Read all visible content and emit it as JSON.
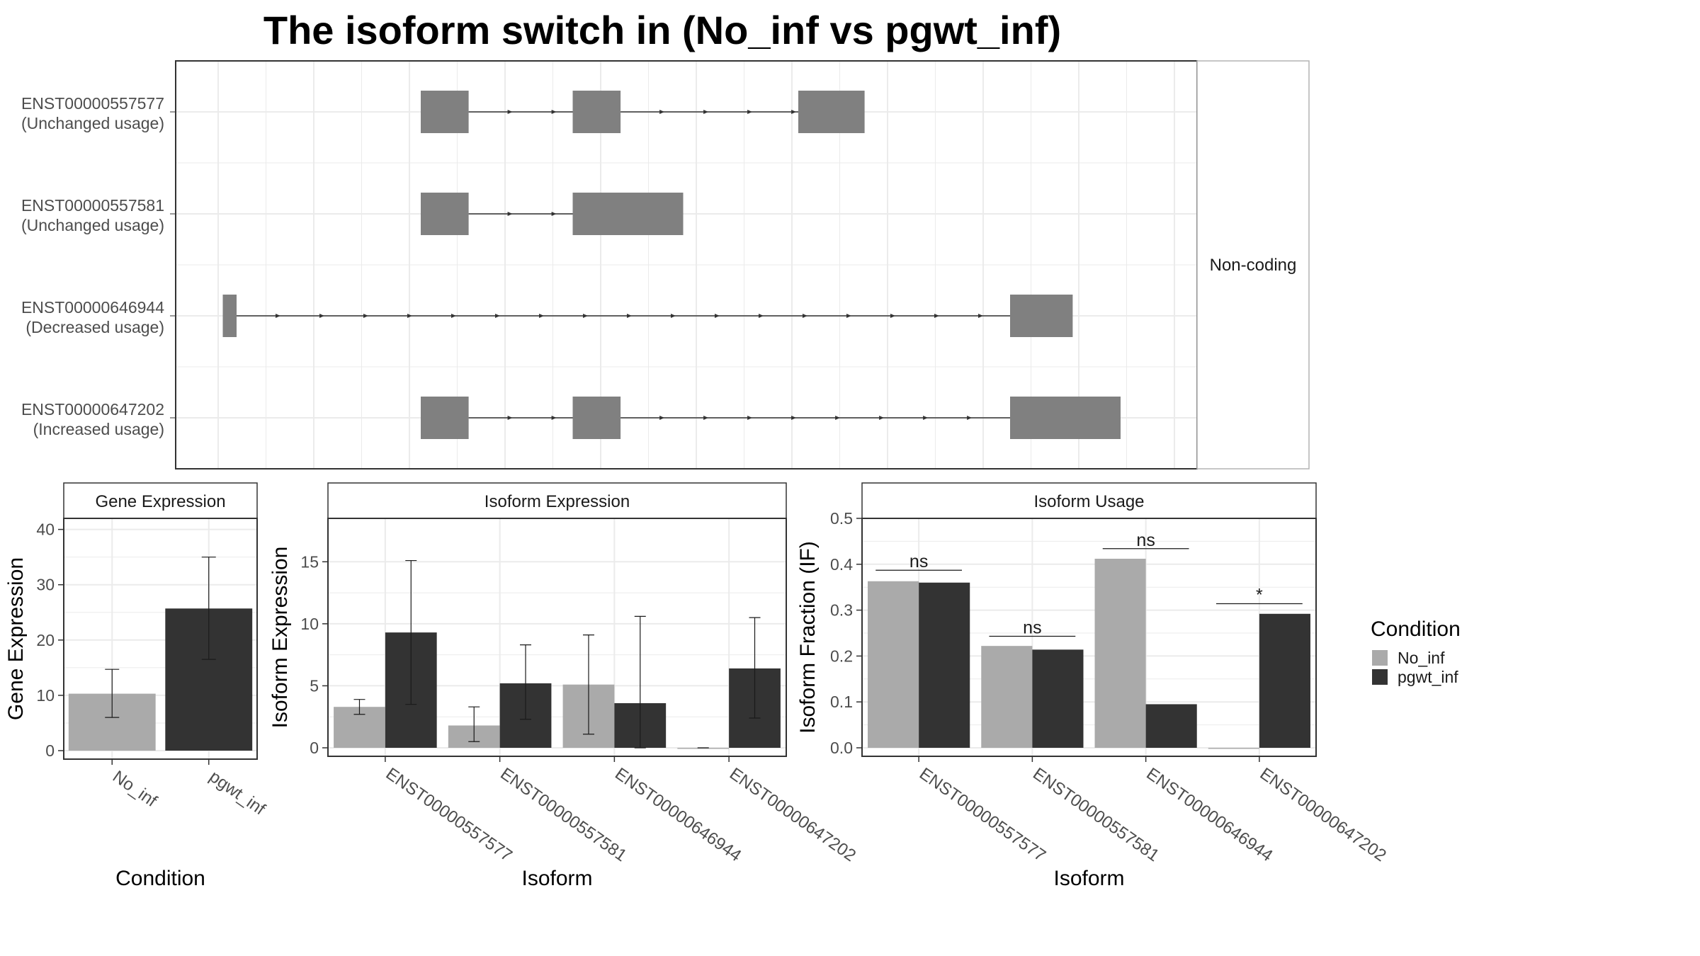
{
  "title": "The isoform switch in  (No_inf vs pgwt_inf)",
  "colors": {
    "no_inf": "#aaaaaa",
    "pgwt_inf": "#333333",
    "exon": "#808080",
    "intron": "#333333",
    "grid": "#ebebeb",
    "border": "#333333"
  },
  "chart_data": [
    {
      "type": "gene-structure",
      "facet_label": "Non-coding",
      "x_domain": [
        0,
        100
      ],
      "transcripts": [
        {
          "id": "ENST00000557577",
          "status": "(Unchanged usage)",
          "exons": [
            [
              22,
              27.2
            ],
            [
              38.5,
              43.7
            ],
            [
              63,
              70.2
            ]
          ]
        },
        {
          "id": "ENST00000557581",
          "status": "(Unchanged usage)",
          "exons": [
            [
              22,
              27.2
            ],
            [
              38.5,
              50.5
            ]
          ]
        },
        {
          "id": "ENST00000646944",
          "status": "(Decreased usage)",
          "exons": [
            [
              0.5,
              2
            ],
            [
              86,
              92.8
            ]
          ]
        },
        {
          "id": "ENST00000647202",
          "status": "(Increased usage)",
          "exons": [
            [
              22,
              27.2
            ],
            [
              38.5,
              43.7
            ],
            [
              86,
              98
            ]
          ]
        }
      ]
    },
    {
      "type": "bar",
      "facet_label": "Gene Expression",
      "xlabel": "Condition",
      "ylabel": "Gene Expression",
      "ylim": [
        0,
        42
      ],
      "yticks": [
        0,
        10,
        20,
        30,
        40
      ],
      "categories": [
        "No_inf",
        "pgwt_inf"
      ],
      "values": [
        10.3,
        25.7
      ],
      "error_low": [
        6.0,
        16.5
      ],
      "error_high": [
        14.7,
        35.0
      ]
    },
    {
      "type": "bar",
      "facet_label": "Isoform Expression",
      "xlabel": "Isoform",
      "ylabel": "Isoform Expression",
      "ylim": [
        0,
        18.5
      ],
      "yticks": [
        0,
        5,
        10,
        15
      ],
      "categories": [
        "ENST00000557577",
        "ENST00000557581",
        "ENST00000646944",
        "ENST00000647202"
      ],
      "series": [
        {
          "name": "No_inf",
          "values": [
            3.3,
            1.8,
            5.1,
            0.0
          ],
          "error_low": [
            2.7,
            0.5,
            1.1,
            0.0
          ],
          "error_high": [
            3.9,
            3.3,
            9.1,
            0.0
          ]
        },
        {
          "name": "pgwt_inf",
          "values": [
            9.3,
            5.2,
            3.6,
            6.4
          ],
          "error_low": [
            3.5,
            2.3,
            0.0,
            2.4
          ],
          "error_high": [
            15.1,
            8.3,
            10.6,
            10.5
          ]
        }
      ]
    },
    {
      "type": "bar",
      "facet_label": "Isoform Usage",
      "xlabel": "Isoform",
      "ylabel": "Isoform Fraction (IF)",
      "ylim": [
        0,
        0.5
      ],
      "yticks": [
        0.0,
        0.1,
        0.2,
        0.3,
        0.4,
        0.5
      ],
      "categories": [
        "ENST00000557577",
        "ENST00000557581",
        "ENST00000646944",
        "ENST00000647202"
      ],
      "series": [
        {
          "name": "No_inf",
          "values": [
            0.363,
            0.222,
            0.412,
            0.0
          ]
        },
        {
          "name": "pgwt_inf",
          "values": [
            0.36,
            0.214,
            0.095,
            0.292
          ]
        }
      ],
      "significance": [
        {
          "label": "ns",
          "y": 0.387
        },
        {
          "label": "ns",
          "y": 0.243
        },
        {
          "label": "ns",
          "y": 0.434
        },
        {
          "label": "*",
          "y": 0.314
        }
      ]
    }
  ],
  "legend": {
    "title": "Condition",
    "items": [
      {
        "label": "No_inf",
        "color": "#aaaaaa"
      },
      {
        "label": "pgwt_inf",
        "color": "#333333"
      }
    ]
  }
}
